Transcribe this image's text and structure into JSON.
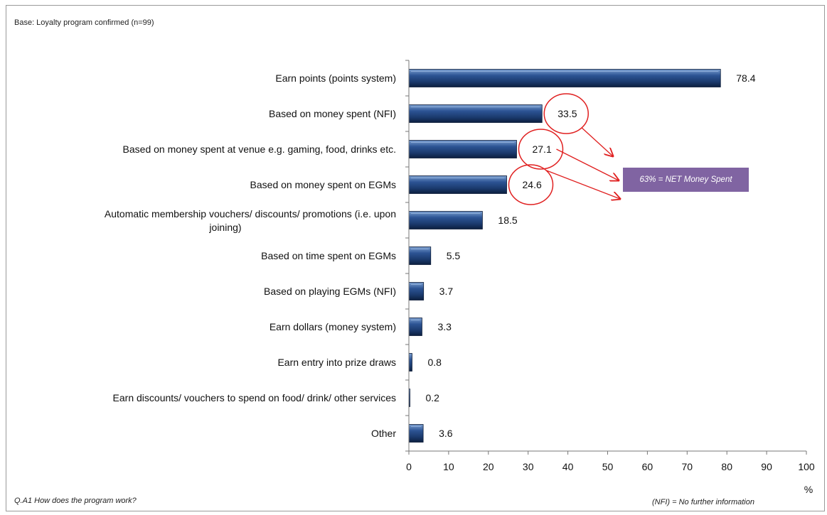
{
  "notes": {
    "base": "Base: Loyalty program confirmed (n=99)",
    "question": "Q.A1 How does the program work?",
    "nfi": "(NFI) = No further information"
  },
  "callout": {
    "text": "63% = NET Money Spent",
    "color": "#8064a2"
  },
  "chart_data": {
    "type": "bar",
    "orientation": "horizontal",
    "categories": [
      [
        "Earn points (points system)"
      ],
      [
        "Based on money spent (NFI)"
      ],
      [
        "Based on money spent at venue e.g. gaming, food, drinks etc."
      ],
      [
        "Based on money spent on EGMs"
      ],
      [
        "Automatic membership vouchers/ discounts/ promotions (i.e. upon",
        "joining)"
      ],
      [
        "Based on time spent on EGMs"
      ],
      [
        "Based on playing EGMs (NFI)"
      ],
      [
        "Earn dollars (money system)"
      ],
      [
        "Earn entry into prize draws"
      ],
      [
        "Earn discounts/ vouchers to spend on food/ drink/ other services"
      ],
      [
        "Other"
      ]
    ],
    "values": [
      78.4,
      33.5,
      27.1,
      24.6,
      18.5,
      5.5,
      3.7,
      3.3,
      0.8,
      0.2,
      3.6
    ],
    "value_labels": [
      "78.4",
      "33.5",
      "27.1",
      "24.6",
      "18.5",
      "5.5",
      "3.7",
      "3.3",
      "0.8",
      "0.2",
      "3.6"
    ],
    "highlighted_indices": [
      1,
      2,
      3
    ],
    "xlim": [
      0,
      100
    ],
    "xticks": [
      0,
      10,
      20,
      30,
      40,
      50,
      60,
      70,
      80,
      90,
      100
    ],
    "xlabel": "%",
    "bar_color": "#1f3f73",
    "highlight_color": "#e02020",
    "grid": false
  }
}
